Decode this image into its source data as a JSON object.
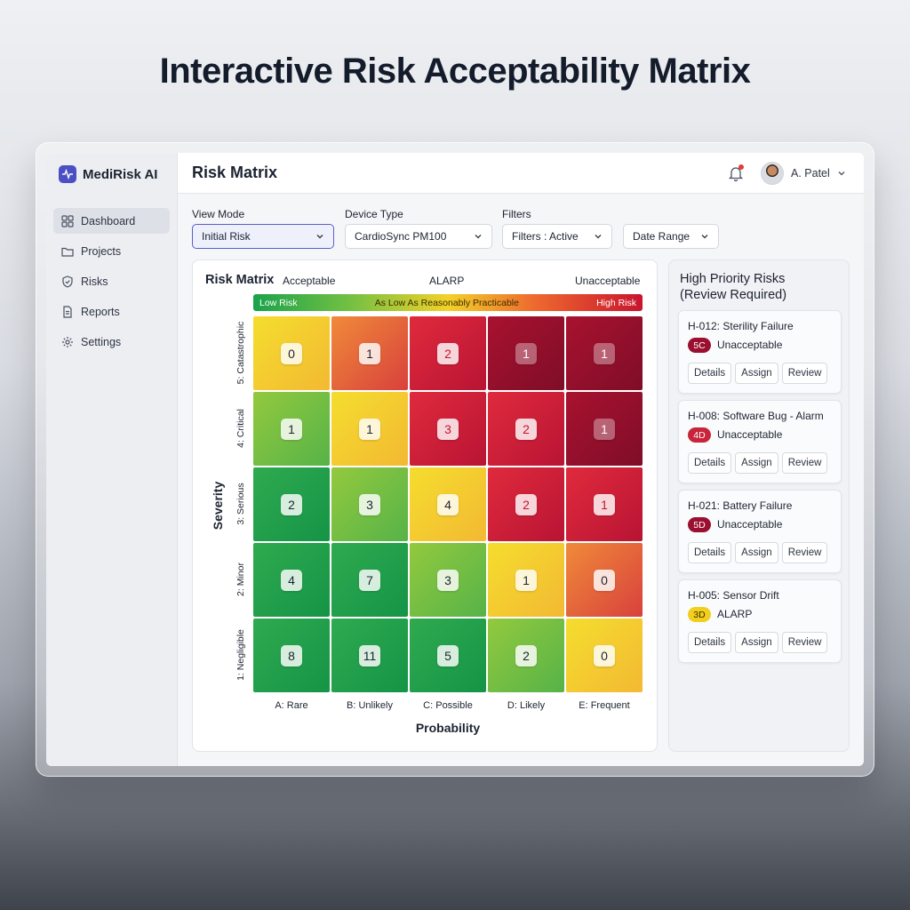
{
  "page_title": "Interactive Risk Acceptability Matrix",
  "app": {
    "name": "MediRisk AI",
    "section_title": "Risk Matrix"
  },
  "sidebar": {
    "items": [
      {
        "label": "Dashboard",
        "icon": "dashboard-icon",
        "active": true
      },
      {
        "label": "Projects",
        "icon": "folder-icon",
        "active": false
      },
      {
        "label": "Risks",
        "icon": "shield-icon",
        "active": false
      },
      {
        "label": "Reports",
        "icon": "document-icon",
        "active": false
      },
      {
        "label": "Settings",
        "icon": "gear-icon",
        "active": false
      }
    ]
  },
  "user": {
    "name": "A. Patel",
    "has_notification": true
  },
  "filters": {
    "view_mode": {
      "label": "View Mode",
      "value": "Initial Risk"
    },
    "device_type": {
      "label": "Device Type",
      "value": "CardioSync PM100"
    },
    "filters": {
      "label": "Filters",
      "value": "Filters : Active"
    },
    "date_range": {
      "value": "Date Range"
    }
  },
  "matrix": {
    "title": "Risk Matrix",
    "zones": {
      "acceptable": "Acceptable",
      "alarp": "ALARP",
      "unacceptable": "Unacceptable"
    },
    "bar": {
      "low": "Low Risk",
      "mid": "As Low As Reasonably Practicable",
      "high": "High Risk"
    },
    "y_title": "Severity",
    "x_title": "Probability",
    "severity_labels": [
      "5: Catastrophic",
      "4: Critical",
      "3: Serious",
      "2: Minor",
      "1: Negligible"
    ],
    "probability_labels": [
      "A: Rare",
      "B: Unlikely",
      "C: Possible",
      "D: Likely",
      "E: Frequent"
    ],
    "counts": [
      [
        "0",
        "1",
        "2",
        "1",
        "1"
      ],
      [
        "1",
        "1",
        "3",
        "2",
        "1"
      ],
      [
        "2",
        "3",
        "4",
        "2",
        "1"
      ],
      [
        "4",
        "7",
        "3",
        "1",
        "0"
      ],
      [
        "8",
        "11",
        "5",
        "2",
        "0"
      ]
    ],
    "colors": {
      "green": "#1aa14b",
      "lightgreen": "#7cc342",
      "yellow": "#f2d82b",
      "orange": "#ef7a30",
      "red": "#d91b36",
      "darkred": "#a3102d"
    }
  },
  "high_priority": {
    "title_line1": "High Priority Risks",
    "title_line2": "(Review Required)",
    "risks": [
      {
        "title": "H-012: Sterility Failure",
        "code": "5C",
        "status": "Unacceptable",
        "color": "#9b1030"
      },
      {
        "title": "H-008: Software Bug - Alarm",
        "code": "4D",
        "status": "Unacceptable",
        "color": "#c8243a"
      },
      {
        "title": "H-021: Battery Failure",
        "code": "5D",
        "status": "Unacceptable",
        "color": "#9b1030"
      },
      {
        "title": "H-005: Sensor Drift",
        "code": "3D",
        "status": "ALARP",
        "color": "#f2cf1d"
      }
    ],
    "buttons": {
      "details": "Details",
      "assign": "Assign",
      "review": "Review"
    }
  }
}
